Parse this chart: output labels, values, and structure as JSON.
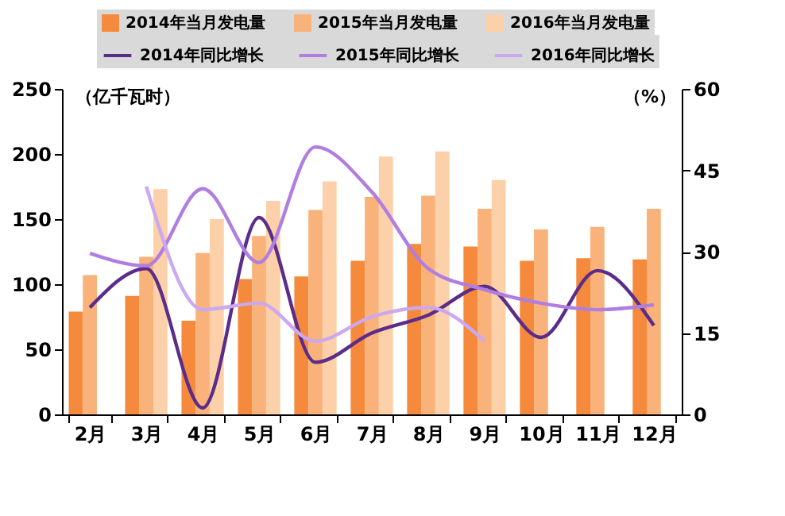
{
  "chart_data": {
    "type": "bar",
    "legend": "top",
    "ylabel": "（亿千瓦时）",
    "y2label": "（%）",
    "categories": [
      "2月",
      "3月",
      "4月",
      "5月",
      "6月",
      "7月",
      "8月",
      "9月",
      "10月",
      "11月",
      "12月"
    ],
    "ylim": [
      0,
      250
    ],
    "yticks": [
      0,
      50,
      100,
      150,
      200,
      250
    ],
    "y2lim": [
      0,
      60
    ],
    "y2ticks": [
      0,
      15,
      30,
      45,
      60
    ],
    "series": [
      {
        "name": "2014年当月发电量",
        "color": "#f58a3c",
        "values": [
          79,
          91,
          72,
          104,
          106,
          118,
          131,
          129,
          118,
          120,
          119
        ]
      },
      {
        "name": "2015年当月发电量",
        "color": "#f9b27a",
        "values": [
          107,
          121,
          124,
          137,
          157,
          167,
          168,
          158,
          142,
          144,
          158
        ]
      },
      {
        "name": "2016年当月发电量",
        "color": "#fcd0a8",
        "values": [
          null,
          173,
          150,
          164,
          179,
          198,
          202,
          180,
          null,
          null,
          null
        ]
      },
      {
        "name": "2014年同比增长",
        "type": "line",
        "axis": "y2",
        "color": "#5b2c8a",
        "values": [
          19.7,
          26.9,
          1.2,
          36.3,
          9.6,
          15,
          18.3,
          23.6,
          14.2,
          26.5,
          16.4
        ]
      },
      {
        "name": "2015年同比增长",
        "type": "line",
        "axis": "y2",
        "color": "#b07ee0",
        "values": [
          29.7,
          27.4,
          41.6,
          28,
          49.3,
          41,
          26.9,
          23,
          20.5,
          19.3,
          20.2
        ]
      },
      {
        "name": "2016年同比增长",
        "type": "line",
        "axis": "y2",
        "color": "#cba8f0",
        "values": [
          null,
          42,
          19.3,
          20.5,
          13.5,
          18,
          19.7,
          13.5,
          null,
          null,
          null
        ]
      }
    ]
  }
}
